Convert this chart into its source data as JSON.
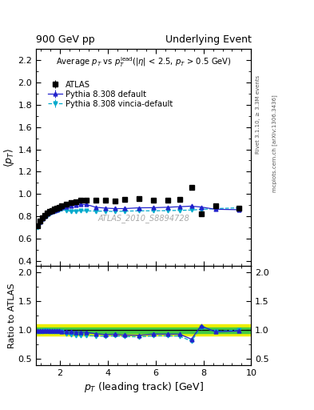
{
  "title_left": "900 GeV pp",
  "title_right": "Underlying Event",
  "watermark": "ATLAS_2010_S8894728",
  "ylabel_main": "<p_T>",
  "ylabel_ratio": "Ratio to ATLAS",
  "xlabel": "p_{T} (leading track) [GeV]",
  "xlim": [
    1.0,
    10.0
  ],
  "ylim_main": [
    0.35,
    2.3
  ],
  "ylim_ratio": [
    0.4,
    2.1
  ],
  "yticks_main": [
    0.4,
    0.6,
    0.8,
    1.0,
    1.2,
    1.4,
    1.6,
    1.8,
    2.0,
    2.2
  ],
  "yticks_ratio": [
    0.5,
    1.0,
    1.5,
    2.0
  ],
  "atlas_x": [
    1.05,
    1.15,
    1.25,
    1.35,
    1.45,
    1.55,
    1.65,
    1.75,
    1.85,
    1.95,
    2.05,
    2.25,
    2.45,
    2.65,
    2.85,
    3.1,
    3.5,
    3.9,
    4.3,
    4.7,
    5.3,
    5.9,
    6.5,
    7.0,
    7.5,
    7.9,
    8.5,
    9.5
  ],
  "atlas_y": [
    0.715,
    0.755,
    0.785,
    0.805,
    0.825,
    0.84,
    0.853,
    0.862,
    0.872,
    0.882,
    0.893,
    0.91,
    0.92,
    0.93,
    0.94,
    0.94,
    0.94,
    0.945,
    0.935,
    0.95,
    0.96,
    0.94,
    0.945,
    0.95,
    1.055,
    0.82,
    0.89,
    0.87
  ],
  "atlas_yerr": [
    0.005,
    0.005,
    0.005,
    0.005,
    0.005,
    0.005,
    0.005,
    0.005,
    0.005,
    0.005,
    0.005,
    0.005,
    0.005,
    0.005,
    0.005,
    0.005,
    0.005,
    0.005,
    0.005,
    0.005,
    0.005,
    0.005,
    0.005,
    0.005,
    0.01,
    0.015,
    0.01,
    0.015
  ],
  "py_def_x": [
    1.05,
    1.15,
    1.25,
    1.35,
    1.45,
    1.55,
    1.65,
    1.75,
    1.85,
    1.95,
    2.05,
    2.25,
    2.45,
    2.65,
    2.85,
    3.1,
    3.5,
    3.9,
    4.3,
    4.7,
    5.3,
    5.9,
    6.5,
    7.0,
    7.5,
    7.9,
    8.5,
    9.5
  ],
  "py_def_y": [
    0.71,
    0.748,
    0.778,
    0.8,
    0.818,
    0.832,
    0.843,
    0.852,
    0.86,
    0.868,
    0.876,
    0.888,
    0.895,
    0.9,
    0.905,
    0.905,
    0.88,
    0.872,
    0.868,
    0.868,
    0.875,
    0.876,
    0.88,
    0.885,
    0.89,
    0.882,
    0.862,
    0.858
  ],
  "py_def_yerr": [
    0.002,
    0.002,
    0.002,
    0.002,
    0.002,
    0.002,
    0.002,
    0.002,
    0.002,
    0.002,
    0.002,
    0.002,
    0.002,
    0.002,
    0.002,
    0.002,
    0.002,
    0.002,
    0.002,
    0.002,
    0.003,
    0.003,
    0.003,
    0.004,
    0.006,
    0.006,
    0.008,
    0.01
  ],
  "py_vin_x": [
    1.05,
    1.15,
    1.25,
    1.35,
    1.45,
    1.55,
    1.65,
    1.75,
    1.85,
    1.95,
    2.05,
    2.25,
    2.45,
    2.65,
    2.85,
    3.1,
    3.5,
    3.9,
    4.3,
    4.7,
    5.3,
    5.9,
    6.5,
    7.0,
    7.5,
    7.9,
    8.5,
    9.5
  ],
  "py_vin_y": [
    0.7,
    0.74,
    0.77,
    0.792,
    0.81,
    0.824,
    0.836,
    0.845,
    0.853,
    0.86,
    0.866,
    0.85,
    0.845,
    0.845,
    0.848,
    0.848,
    0.845,
    0.845,
    0.842,
    0.845,
    0.848,
    0.848,
    0.85,
    0.852,
    0.855,
    0.86,
    0.868,
    0.875
  ],
  "py_vin_yerr": [
    0.002,
    0.002,
    0.002,
    0.002,
    0.002,
    0.002,
    0.002,
    0.002,
    0.002,
    0.002,
    0.002,
    0.002,
    0.002,
    0.002,
    0.002,
    0.002,
    0.002,
    0.002,
    0.002,
    0.002,
    0.003,
    0.003,
    0.003,
    0.004,
    0.006,
    0.006,
    0.008,
    0.01
  ],
  "ratio_def_y": [
    0.993,
    0.99,
    0.991,
    0.993,
    0.992,
    0.99,
    0.988,
    0.989,
    0.988,
    0.984,
    0.981,
    0.976,
    0.972,
    0.968,
    0.963,
    0.962,
    0.936,
    0.922,
    0.928,
    0.914,
    0.911,
    0.931,
    0.93,
    0.93,
    0.843,
    1.075,
    0.97,
    0.985
  ],
  "ratio_def_yerr": [
    0.003,
    0.003,
    0.003,
    0.003,
    0.003,
    0.003,
    0.003,
    0.003,
    0.003,
    0.003,
    0.003,
    0.003,
    0.003,
    0.003,
    0.003,
    0.003,
    0.003,
    0.003,
    0.003,
    0.003,
    0.004,
    0.004,
    0.004,
    0.005,
    0.008,
    0.01,
    0.011,
    0.014
  ],
  "ratio_vin_y": [
    0.979,
    0.98,
    0.981,
    0.984,
    0.983,
    0.981,
    0.98,
    0.981,
    0.979,
    0.975,
    0.97,
    0.934,
    0.918,
    0.909,
    0.902,
    0.902,
    0.899,
    0.893,
    0.901,
    0.889,
    0.883,
    0.901,
    0.9,
    0.897,
    0.81,
    1.049,
    0.977,
    1.005
  ],
  "ratio_vin_yerr": [
    0.003,
    0.003,
    0.003,
    0.003,
    0.003,
    0.003,
    0.003,
    0.003,
    0.003,
    0.003,
    0.003,
    0.003,
    0.003,
    0.003,
    0.003,
    0.003,
    0.003,
    0.003,
    0.003,
    0.003,
    0.004,
    0.004,
    0.004,
    0.005,
    0.008,
    0.01,
    0.011,
    0.014
  ],
  "atlas_color": "black",
  "py_def_color": "#2222cc",
  "py_vin_color": "#00aacc",
  "band_yellow": "#eeee00",
  "band_green": "#44cc44",
  "band_yellow_lo": 0.9,
  "band_yellow_hi": 1.1,
  "band_green_lo": 0.95,
  "band_green_hi": 1.05
}
